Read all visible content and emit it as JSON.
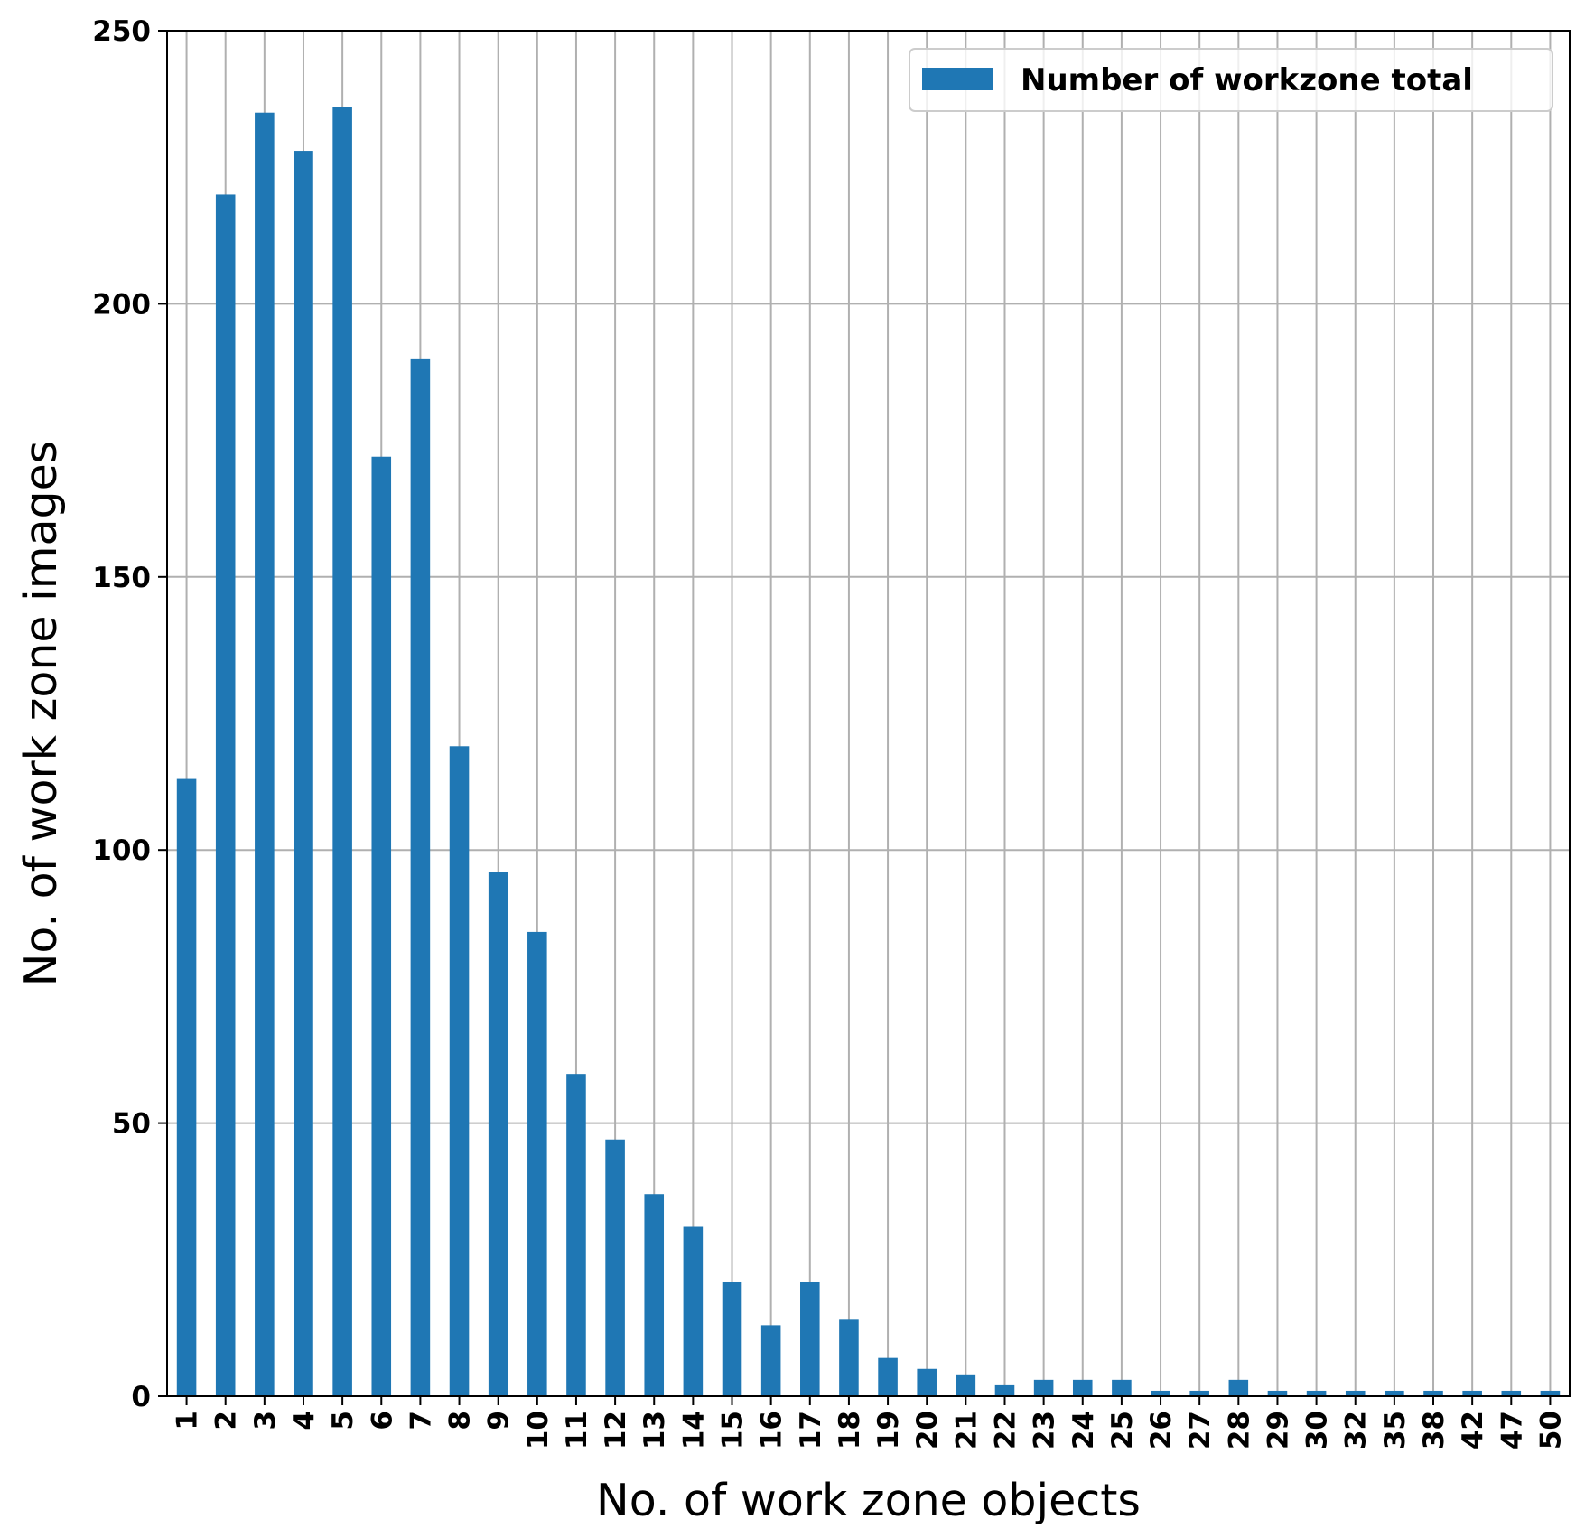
{
  "chart_data": {
    "type": "bar",
    "categories": [
      "1",
      "2",
      "3",
      "4",
      "5",
      "6",
      "7",
      "8",
      "9",
      "10",
      "11",
      "12",
      "13",
      "14",
      "15",
      "16",
      "17",
      "18",
      "19",
      "20",
      "21",
      "22",
      "23",
      "24",
      "25",
      "26",
      "27",
      "28",
      "29",
      "30",
      "32",
      "35",
      "38",
      "42",
      "47",
      "50"
    ],
    "series": [
      {
        "name": "Number of workzone total",
        "values": [
          113,
          220,
          235,
          228,
          236,
          172,
          190,
          119,
          96,
          85,
          59,
          47,
          37,
          31,
          21,
          13,
          21,
          14,
          7,
          5,
          4,
          2,
          3,
          3,
          3,
          1,
          1,
          3,
          1,
          1,
          1,
          1,
          1,
          1,
          1,
          1
        ]
      }
    ],
    "xlabel": "No. of work zone objects",
    "ylabel": "No. of work zone images",
    "ylim": [
      0,
      250
    ],
    "yticks": [
      "0",
      "50",
      "100",
      "150",
      "200",
      "250"
    ],
    "grid": true,
    "legend_position": "top-right",
    "bar_color": "#1f77b4",
    "grid_color": "#b0b0b0"
  }
}
